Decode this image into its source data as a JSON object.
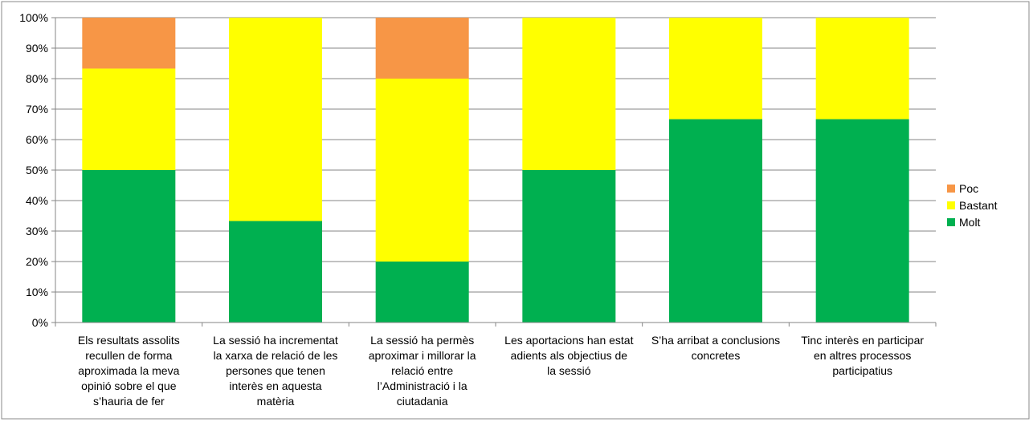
{
  "chart_data": {
    "type": "bar",
    "stacked": true,
    "percent": true,
    "title": "",
    "xlabel": "",
    "ylabel": "",
    "ylim": [
      0,
      100
    ],
    "yticks": [
      "0%",
      "10%",
      "20%",
      "30%",
      "40%",
      "50%",
      "60%",
      "70%",
      "80%",
      "90%",
      "100%"
    ],
    "grid": true,
    "legend_position": "right",
    "categories": [
      [
        "Els resultats assolits",
        "recullen de forma",
        "aproximada la meva",
        "opinió sobre el que",
        "s’hauria de fer"
      ],
      [
        "La sessió ha incrementat",
        "la xarxa de relació de les",
        "persones que tenen",
        "interès en aquesta",
        "matèria"
      ],
      [
        "La sessió ha permès",
        "aproximar i millorar la",
        "relació entre",
        "l’Administració i la",
        "ciutadania"
      ],
      [
        "Les aportacions han estat",
        "adients als objectius de",
        "la sessió"
      ],
      [
        "S’ha arribat a conclusions",
        "concretes"
      ],
      [
        "Tinc interès en participar",
        "en altres processos",
        "participatius"
      ]
    ],
    "series": [
      {
        "name": "Molt",
        "color": "#00b050",
        "values": [
          50,
          33.3,
          20,
          50,
          66.7,
          66.7
        ]
      },
      {
        "name": "Bastant",
        "color": "#ffff00",
        "values": [
          33.3,
          66.7,
          60,
          50,
          33.3,
          33.3
        ]
      },
      {
        "name": "Poc",
        "color": "#f79646",
        "values": [
          16.7,
          0,
          20,
          0,
          0,
          0
        ]
      }
    ],
    "legend_order": [
      "Poc",
      "Bastant",
      "Molt"
    ]
  }
}
